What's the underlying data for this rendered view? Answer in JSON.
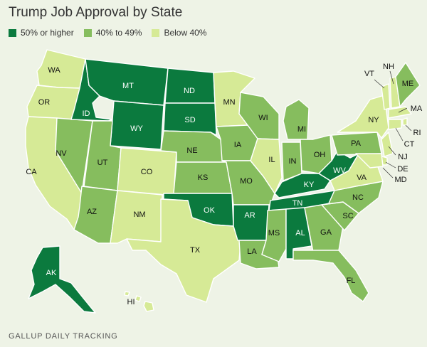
{
  "title": "Trump Job Approval by State",
  "legend": [
    {
      "label": "50% or higher",
      "color": "#0b7a3e"
    },
    {
      "label": "40% to 49%",
      "color": "#86bd5e"
    },
    {
      "label": "Below 40%",
      "color": "#d6ea96"
    }
  ],
  "footer": "GALLUP DAILY TRACKING",
  "state_categories": {
    "WA": "low",
    "OR": "low",
    "CA": "low",
    "NV": "mid",
    "ID": "high",
    "MT": "high",
    "WY": "high",
    "UT": "mid",
    "AZ": "mid",
    "CO": "low",
    "NM": "low",
    "ND": "high",
    "SD": "high",
    "NE": "mid",
    "KS": "mid",
    "OK": "high",
    "TX": "low",
    "MN": "low",
    "IA": "mid",
    "MO": "mid",
    "AR": "high",
    "LA": "mid",
    "WI": "mid",
    "IL": "low",
    "MI": "mid",
    "IN": "mid",
    "OH": "mid",
    "KY": "high",
    "TN": "high",
    "MS": "mid",
    "AL": "high",
    "GA": "mid",
    "FL": "mid",
    "SC": "mid",
    "NC": "mid",
    "VA": "low",
    "WV": "high",
    "PA": "mid",
    "NY": "low",
    "VT": "low",
    "NH": "low",
    "ME": "mid",
    "MA": "low",
    "RI": "low",
    "CT": "low",
    "NJ": "low",
    "DE": "low",
    "MD": "low",
    "AK": "high",
    "HI": "low"
  },
  "state_labels": {
    "WA": "WA",
    "OR": "OR",
    "CA": "CA",
    "NV": "NV",
    "ID": "ID",
    "MT": "MT",
    "WY": "WY",
    "UT": "UT",
    "AZ": "AZ",
    "CO": "CO",
    "NM": "NM",
    "ND": "ND",
    "SD": "SD",
    "NE": "NE",
    "KS": "KS",
    "OK": "OK",
    "TX": "TX",
    "MN": "MN",
    "IA": "IA",
    "MO": "MO",
    "AR": "AR",
    "LA": "LA",
    "WI": "WI",
    "IL": "IL",
    "MI": "MI",
    "IN": "IN",
    "OH": "OH",
    "KY": "KY",
    "TN": "TN",
    "MS": "MS",
    "AL": "AL",
    "GA": "GA",
    "FL": "FL",
    "SC": "SC",
    "NC": "NC",
    "VA": "VA",
    "WV": "WV",
    "PA": "PA",
    "NY": "NY",
    "VT": "VT",
    "NH": "NH",
    "ME": "ME",
    "MA": "MA",
    "RI": "RI",
    "CT": "CT",
    "NJ": "NJ",
    "DE": "DE",
    "MD": "MD",
    "AK": "AK",
    "HI": "HI"
  },
  "category_colors": {
    "high": "#0b7a3e",
    "mid": "#86bd5e",
    "low": "#d6ea96"
  }
}
